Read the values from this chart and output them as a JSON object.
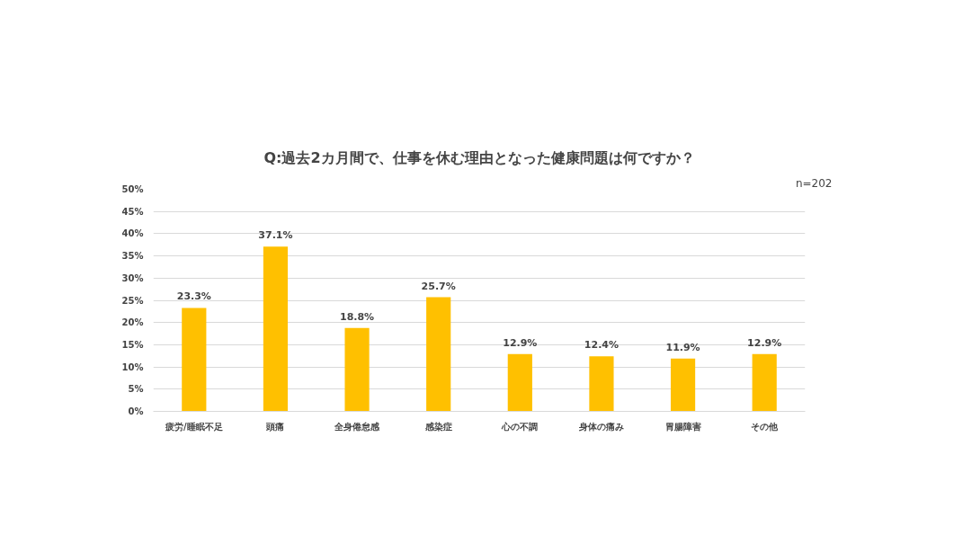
{
  "chart_data": {
    "type": "bar",
    "title": "Q:過去2カ月間で、仕事を休む理由となった健康問題は何ですか？",
    "annotations": [
      "n=202"
    ],
    "categories": [
      "疲労/睡眠不足",
      "頭痛",
      "全身倦怠感",
      "感染症",
      "心の不調",
      "身体の痛み",
      "胃腸障害",
      "その他"
    ],
    "values": [
      23.3,
      37.1,
      18.8,
      25.7,
      12.9,
      12.4,
      11.9,
      12.9
    ],
    "color": "#ffc000",
    "ylim": [
      0,
      50
    ],
    "yticks": [
      {
        "value": 0,
        "label": "0%"
      },
      {
        "value": 5,
        "label": "5%"
      },
      {
        "value": 10,
        "label": "10%"
      },
      {
        "value": 15,
        "label": "15%"
      },
      {
        "value": 20,
        "label": "20%"
      },
      {
        "value": 25,
        "label": "25%"
      },
      {
        "value": 30,
        "label": "30%"
      },
      {
        "value": 35,
        "label": "35%"
      },
      {
        "value": 40,
        "label": "40%"
      },
      {
        "value": 45,
        "label": "45%"
      },
      {
        "value": 50,
        "label": "50%"
      }
    ],
    "value_labels": [
      "23.3%",
      "37.1%",
      "18.8%",
      "25.7%",
      "12.9%",
      "12.4%",
      "11.9%",
      "12.9%"
    ],
    "grid": "y"
  }
}
